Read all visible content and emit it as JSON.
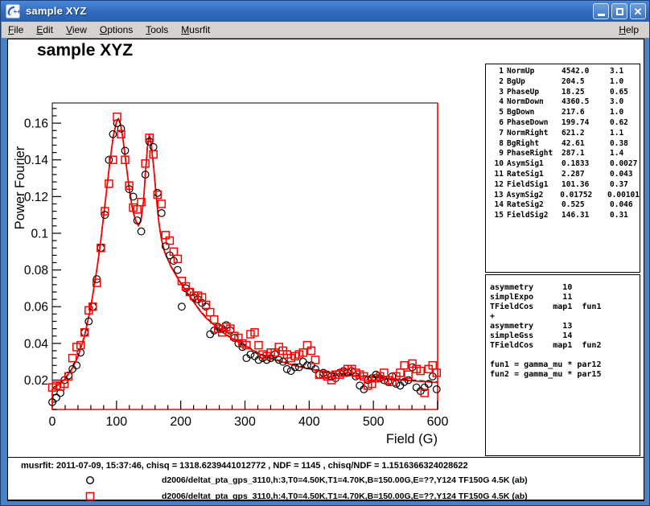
{
  "window": {
    "title": "sample XYZ"
  },
  "menubar": {
    "items": [
      "File",
      "Edit",
      "View",
      "Options",
      "Tools",
      "Musrfit"
    ],
    "help": "Help"
  },
  "canvas": {
    "plot_title": "sample XYZ"
  },
  "param_box": {
    "rows": [
      {
        "no": "1",
        "name": "NormUp",
        "value": "4542.0",
        "error": "3.1"
      },
      {
        "no": "2",
        "name": "BgUp",
        "value": "204.5",
        "error": "1.0"
      },
      {
        "no": "3",
        "name": "PhaseUp",
        "value": "18.25",
        "error": "0.65"
      },
      {
        "no": "4",
        "name": "NormDown",
        "value": "4360.5",
        "error": "3.0"
      },
      {
        "no": "5",
        "name": "BgDown",
        "value": "217.6",
        "error": "1.0"
      },
      {
        "no": "6",
        "name": "PhaseDown",
        "value": "199.74",
        "error": "0.62"
      },
      {
        "no": "7",
        "name": "NormRight",
        "value": "621.2",
        "error": "1.1"
      },
      {
        "no": "8",
        "name": "BgRight",
        "value": "42.61",
        "error": "0.38"
      },
      {
        "no": "9",
        "name": "PhaseRight",
        "value": "287.1",
        "error": "1.4"
      },
      {
        "no": "10",
        "name": "AsymSig1",
        "value": "0.1833",
        "error": "0.0027"
      },
      {
        "no": "11",
        "name": "RateSig1",
        "value": "2.287",
        "error": "0.043"
      },
      {
        "no": "12",
        "name": "FieldSig1",
        "value": "101.36",
        "error": "0.37"
      },
      {
        "no": "13",
        "name": "AsymSig2",
        "value": "0.01752",
        "error": "0.00101"
      },
      {
        "no": "14",
        "name": "RateSig2",
        "value": "0.525",
        "error": "0.046"
      },
      {
        "no": "15",
        "name": "FieldSig2",
        "value": "146.31",
        "error": "0.31"
      }
    ]
  },
  "theory_box": {
    "lines": [
      "asymmetry      10",
      "simplExpo      11",
      "TFieldCos    map1  fun1",
      "+",
      "asymmetry      13",
      "simpleGss      14",
      "TFieldCos    map1  fun2",
      "",
      "fun1 = gamma_mu * par12",
      "fun2 = gamma_mu * par15"
    ]
  },
  "legend": {
    "info": "musrfit: 2011-07-09, 15:37:46, chisq = 1318.6239441012772 , NDF = 1145 , chisq/NDF = 1.1516366324028622",
    "entries": [
      {
        "marker": "circle",
        "color": "#000000",
        "label": "d2006/deltat_pta_gps_3110,h:3,T0=4.50K,T1=4.70K,B=150.00G,E=??,Y124 TF150G 4.5K (ab)"
      },
      {
        "marker": "square",
        "color": "#ff0000",
        "label": "d2006/deltat_pta_gps_3110,h:4,T0=4.50K,T1=4.70K,B=150.00G,E=??,Y124 TF150G 4.5K (ab)"
      }
    ]
  },
  "colors": {
    "series1": "#000000",
    "series2": "#ff0000",
    "fit": "#ff0000",
    "frame": "#000000"
  },
  "chart_data": {
    "type": "scatter",
    "title": "sample XYZ",
    "xlabel": "Field (G)",
    "ylabel": "Power Fourier",
    "xlim": [
      0,
      600
    ],
    "ylim": [
      0.004,
      0.171
    ],
    "x_ticks": [
      0,
      100,
      200,
      300,
      400,
      500,
      600
    ],
    "x_minor_step": 20,
    "y_ticks": [
      0.02,
      0.04,
      0.06,
      0.08,
      0.1,
      0.12,
      0.14,
      0.16
    ],
    "y_tick_labels": [
      "0.02",
      "0.04",
      "0.06",
      "0.08",
      "0.1",
      "0.12",
      "0.14",
      "0.16"
    ],
    "y_minor_step": 0.004,
    "grid": false,
    "legend_position": "bottom-panel",
    "fit_curve": {
      "color": "#ff0000",
      "shadow_color": "#000000",
      "points": [
        [
          0,
          0.0155
        ],
        [
          10,
          0.018
        ],
        [
          20,
          0.021
        ],
        [
          30,
          0.026
        ],
        [
          40,
          0.033
        ],
        [
          50,
          0.044
        ],
        [
          60,
          0.06
        ],
        [
          70,
          0.082
        ],
        [
          75,
          0.095
        ],
        [
          80,
          0.11
        ],
        [
          85,
          0.125
        ],
        [
          90,
          0.14
        ],
        [
          95,
          0.153
        ],
        [
          100,
          0.161
        ],
        [
          103,
          0.1625
        ],
        [
          106,
          0.16
        ],
        [
          110,
          0.152
        ],
        [
          115,
          0.138
        ],
        [
          120,
          0.124
        ],
        [
          125,
          0.113
        ],
        [
          130,
          0.107
        ],
        [
          134,
          0.1045
        ],
        [
          138,
          0.107
        ],
        [
          142,
          0.118
        ],
        [
          145,
          0.133
        ],
        [
          148,
          0.147
        ],
        [
          151,
          0.154
        ],
        [
          154,
          0.149
        ],
        [
          158,
          0.136
        ],
        [
          162,
          0.12
        ],
        [
          166,
          0.106
        ],
        [
          170,
          0.097
        ],
        [
          175,
          0.09
        ],
        [
          180,
          0.086
        ],
        [
          185,
          0.082
        ],
        [
          190,
          0.079
        ],
        [
          195,
          0.076
        ],
        [
          200,
          0.073
        ],
        [
          210,
          0.068
        ],
        [
          220,
          0.063
        ],
        [
          230,
          0.058
        ],
        [
          240,
          0.054
        ],
        [
          250,
          0.051
        ],
        [
          260,
          0.048
        ],
        [
          270,
          0.045
        ],
        [
          280,
          0.043
        ],
        [
          290,
          0.041
        ],
        [
          300,
          0.039
        ],
        [
          320,
          0.035
        ],
        [
          340,
          0.032
        ],
        [
          360,
          0.03
        ],
        [
          380,
          0.028
        ],
        [
          400,
          0.0265
        ],
        [
          420,
          0.025
        ],
        [
          440,
          0.024
        ],
        [
          460,
          0.023
        ],
        [
          480,
          0.0225
        ],
        [
          500,
          0.022
        ],
        [
          520,
          0.021
        ],
        [
          540,
          0.0205
        ],
        [
          560,
          0.02
        ],
        [
          580,
          0.0195
        ],
        [
          600,
          0.019
        ]
      ]
    },
    "series": [
      {
        "name": "d2006/deltat_pta_gps_3110,h:3,T0=4.50K,T1=4.70K,B=150.00G,E=??,Y124 TF150G 4.5K (ab)",
        "marker": "circle",
        "color": "#000000",
        "points": [
          [
            0,
            0.008
          ],
          [
            6.3,
            0.0105
          ],
          [
            12.6,
            0.013
          ],
          [
            18.9,
            0.02
          ],
          [
            25.2,
            0.0225
          ],
          [
            31.5,
            0.026
          ],
          [
            37.8,
            0.028
          ],
          [
            44.1,
            0.035
          ],
          [
            50.4,
            0.046
          ],
          [
            56.7,
            0.052
          ],
          [
            63,
            0.06
          ],
          [
            69.3,
            0.075
          ],
          [
            75.6,
            0.092
          ],
          [
            81.9,
            0.11
          ],
          [
            88.2,
            0.14
          ],
          [
            94.5,
            0.154
          ],
          [
            100.8,
            0.16
          ],
          [
            107.1,
            0.157
          ],
          [
            113.4,
            0.145
          ],
          [
            119.7,
            0.124
          ],
          [
            126,
            0.12
          ],
          [
            132.3,
            0.107
          ],
          [
            138.6,
            0.101
          ],
          [
            144.9,
            0.132
          ],
          [
            151.2,
            0.15
          ],
          [
            157.5,
            0.147
          ],
          [
            163.8,
            0.122
          ],
          [
            170.1,
            0.111
          ],
          [
            176.4,
            0.093
          ],
          [
            182.7,
            0.088
          ],
          [
            189,
            0.085
          ],
          [
            195.3,
            0.08
          ],
          [
            201.6,
            0.06
          ],
          [
            207.9,
            0.07
          ],
          [
            214.2,
            0.068
          ],
          [
            220.5,
            0.065
          ],
          [
            226.8,
            0.064
          ],
          [
            233.1,
            0.062
          ],
          [
            239.4,
            0.06
          ],
          [
            245.7,
            0.045
          ],
          [
            252,
            0.047
          ],
          [
            258.3,
            0.049
          ],
          [
            264.6,
            0.048
          ],
          [
            270.9,
            0.05
          ],
          [
            277.2,
            0.047
          ],
          [
            283.5,
            0.043
          ],
          [
            289.8,
            0.04
          ],
          [
            296.1,
            0.038
          ],
          [
            302.4,
            0.032
          ],
          [
            308.7,
            0.034
          ],
          [
            315,
            0.033
          ],
          [
            321.3,
            0.031
          ],
          [
            327.6,
            0.032
          ],
          [
            333.9,
            0.031
          ],
          [
            340.2,
            0.032
          ],
          [
            346.5,
            0.034
          ],
          [
            352.8,
            0.031
          ],
          [
            359.1,
            0.03
          ],
          [
            365.4,
            0.026
          ],
          [
            371.7,
            0.025
          ],
          [
            378,
            0.027
          ],
          [
            384.3,
            0.027
          ],
          [
            390.6,
            0.03
          ],
          [
            396.9,
            0.028
          ],
          [
            403.2,
            0.028
          ],
          [
            409.5,
            0.026
          ],
          [
            415.8,
            0.023
          ],
          [
            422.1,
            0.024
          ],
          [
            428.4,
            0.023
          ],
          [
            434.7,
            0.022
          ],
          [
            441,
            0.021
          ],
          [
            447.3,
            0.024
          ],
          [
            453.6,
            0.025
          ],
          [
            459.9,
            0.024
          ],
          [
            466.2,
            0.025
          ],
          [
            472.5,
            0.022
          ],
          [
            478.8,
            0.017
          ],
          [
            485.1,
            0.015
          ],
          [
            491.4,
            0.02
          ],
          [
            497.7,
            0.021
          ],
          [
            504,
            0.023
          ],
          [
            510.3,
            0.021
          ],
          [
            516.6,
            0.02
          ],
          [
            522.9,
            0.019
          ],
          [
            529.2,
            0.022
          ],
          [
            535.5,
            0.018
          ],
          [
            541.8,
            0.017
          ],
          [
            548.1,
            0.019
          ],
          [
            554.4,
            0.02
          ],
          [
            560.7,
            0.027
          ],
          [
            567,
            0.016
          ],
          [
            573.3,
            0.014
          ],
          [
            579.6,
            0.016
          ],
          [
            585.9,
            0.018
          ],
          [
            592.2,
            0.022
          ],
          [
            598.5,
            0.015
          ]
        ]
      },
      {
        "name": "d2006/deltat_pta_gps_3110,h:4,T0=4.50K,T1=4.70K,B=150.00G,E=??,Y124 TF150G 4.5K (ab)",
        "marker": "square",
        "color": "#ff0000",
        "points": [
          [
            0,
            0.016
          ],
          [
            6.3,
            0.017
          ],
          [
            12.6,
            0.0165
          ],
          [
            18.9,
            0.018
          ],
          [
            25.2,
            0.022
          ],
          [
            31.5,
            0.032
          ],
          [
            37.8,
            0.038
          ],
          [
            44.1,
            0.039
          ],
          [
            50.4,
            0.046
          ],
          [
            56.7,
            0.058
          ],
          [
            63,
            0.06
          ],
          [
            69.3,
            0.073
          ],
          [
            75.6,
            0.092
          ],
          [
            81.9,
            0.112
          ],
          [
            88.2,
            0.127
          ],
          [
            94.5,
            0.14
          ],
          [
            100.8,
            0.1635
          ],
          [
            107.1,
            0.154
          ],
          [
            113.4,
            0.14
          ],
          [
            119.7,
            0.126
          ],
          [
            126,
            0.114
          ],
          [
            132.3,
            0.113
          ],
          [
            138.6,
            0.117
          ],
          [
            144.9,
            0.138
          ],
          [
            151.2,
            0.152
          ],
          [
            157.5,
            0.143
          ],
          [
            163.8,
            0.121
          ],
          [
            170.1,
            0.116
          ],
          [
            176.4,
            0.099
          ],
          [
            182.7,
            0.096
          ],
          [
            189,
            0.09
          ],
          [
            195.3,
            0.086
          ],
          [
            201.6,
            0.074
          ],
          [
            207.9,
            0.071
          ],
          [
            214.2,
            0.068
          ],
          [
            220.5,
            0.066
          ],
          [
            226.8,
            0.066
          ],
          [
            233.1,
            0.065
          ],
          [
            239.4,
            0.061
          ],
          [
            245.7,
            0.057
          ],
          [
            252,
            0.053
          ],
          [
            258.3,
            0.048
          ],
          [
            264.6,
            0.046
          ],
          [
            270.9,
            0.049
          ],
          [
            277.2,
            0.048
          ],
          [
            283.5,
            0.044
          ],
          [
            289.8,
            0.043
          ],
          [
            296.1,
            0.04
          ],
          [
            302.4,
            0.039
          ],
          [
            308.7,
            0.045
          ],
          [
            315,
            0.046
          ],
          [
            321.3,
            0.039
          ],
          [
            327.6,
            0.034
          ],
          [
            333.9,
            0.033
          ],
          [
            340.2,
            0.035
          ],
          [
            346.5,
            0.035
          ],
          [
            352.8,
            0.038
          ],
          [
            359.1,
            0.036
          ],
          [
            365.4,
            0.034
          ],
          [
            371.7,
            0.032
          ],
          [
            378,
            0.033
          ],
          [
            384.3,
            0.034
          ],
          [
            390.6,
            0.035
          ],
          [
            396.9,
            0.039
          ],
          [
            403.2,
            0.036
          ],
          [
            409.5,
            0.031
          ],
          [
            415.8,
            0.023
          ],
          [
            422.1,
            0.023
          ],
          [
            428.4,
            0.022
          ],
          [
            434.7,
            0.02
          ],
          [
            441,
            0.023
          ],
          [
            447.3,
            0.023
          ],
          [
            453.6,
            0.024
          ],
          [
            459.9,
            0.026
          ],
          [
            466.2,
            0.026
          ],
          [
            472.5,
            0.024
          ],
          [
            478.8,
            0.023
          ],
          [
            485.1,
            0.022
          ],
          [
            491.4,
            0.017
          ],
          [
            497.7,
            0.018
          ],
          [
            504,
            0.021
          ],
          [
            510.3,
            0.022
          ],
          [
            516.6,
            0.024
          ],
          [
            522.9,
            0.02
          ],
          [
            529.2,
            0.019
          ],
          [
            535.5,
            0.022
          ],
          [
            541.8,
            0.024
          ],
          [
            548.1,
            0.028
          ],
          [
            554.4,
            0.023
          ],
          [
            560.7,
            0.029
          ],
          [
            567,
            0.026
          ],
          [
            573.3,
            0.025
          ],
          [
            579.6,
            0.013
          ],
          [
            585.9,
            0.026
          ],
          [
            592.2,
            0.028
          ],
          [
            598.5,
            0.024
          ]
        ]
      }
    ]
  }
}
